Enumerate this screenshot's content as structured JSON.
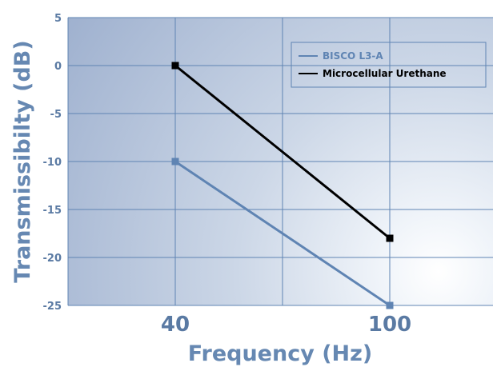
{
  "chart_data": {
    "type": "line",
    "title": "",
    "xlabel": "Frequency (Hz)",
    "ylabel": "Transmissibilty (dB)",
    "categories": [
      "40",
      "100"
    ],
    "ylim": [
      -25,
      5
    ],
    "yticks": [
      "5",
      "0",
      "-5",
      "-10",
      "-15",
      "-20",
      "-25"
    ],
    "grid": true,
    "legend_position": "top-right",
    "series": [
      {
        "name": "BISCO L3-A",
        "x": [
          "40",
          "100"
        ],
        "values": [
          -10,
          -25
        ],
        "color": "#5f84b3"
      },
      {
        "name": "Microcellular Urethane",
        "x": [
          "40",
          "100"
        ],
        "values": [
          0,
          -18
        ],
        "color": "#000000"
      }
    ]
  },
  "colors": {
    "plot_bg_light": "#ffffff",
    "plot_bg_dark": "#9fb1cf",
    "grid": "#5f84b3",
    "axis_text": "#5a7aa3"
  }
}
